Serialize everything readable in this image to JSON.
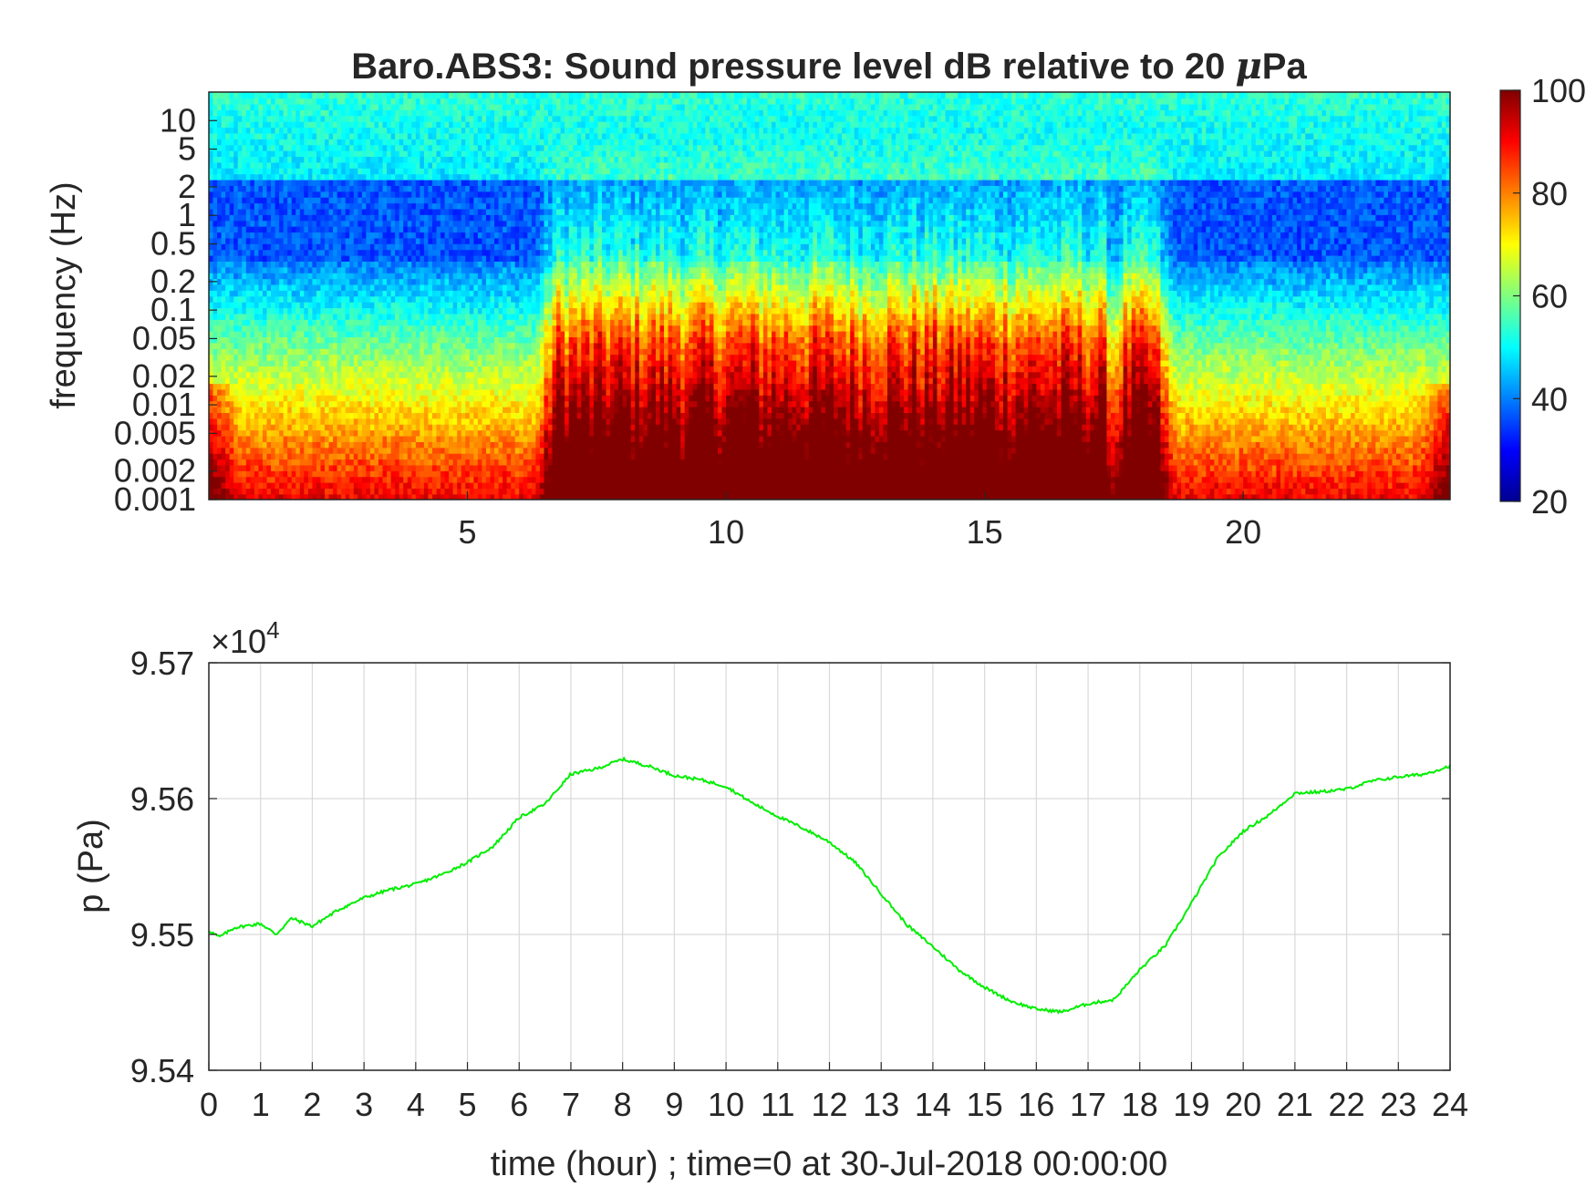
{
  "chart_data": [
    {
      "type": "heatmap",
      "title": "Baro.ABS3: Sound pressure level dB relative to 20 μPa",
      "title_main": "Baro.ABS3: Sound pressure level dB relative to 20 ",
      "title_mu": "μ",
      "title_tail": "Pa",
      "ylabel": "frequency (Hz)",
      "xlim": [
        0,
        24
      ],
      "ylim": [
        0.001,
        20
      ],
      "yscale": "log",
      "x_ticks": [
        5,
        10,
        15,
        20
      ],
      "x_tick_labels": [
        "5",
        "10",
        "15",
        "20"
      ],
      "y_ticks": [
        0.001,
        0.002,
        0.005,
        0.01,
        0.02,
        0.05,
        0.1,
        0.2,
        0.5,
        1,
        2,
        5,
        10
      ],
      "y_tick_labels": [
        "0.001",
        "0.002",
        "0.005",
        "0.01",
        "0.02",
        "0.05",
        "0.1",
        "0.2",
        "0.5",
        "1",
        "2",
        "5",
        "10"
      ],
      "colormap": "jet",
      "colorbar": {
        "range": [
          20,
          100
        ],
        "ticks": [
          20,
          40,
          60,
          80,
          100
        ],
        "tick_labels": [
          "20",
          "40",
          "60",
          "80",
          "100"
        ]
      },
      "activity_periods_hours": [
        [
          6.8,
          9.2
        ],
        [
          9.5,
          17.2
        ],
        [
          17.8,
          18.2
        ]
      ],
      "approx_levels_db": {
        "high_freq_band_10Hz": 50,
        "band_1Hz": 35,
        "low_freq_0.001Hz": 88
      }
    },
    {
      "type": "line",
      "xlabel": "time (hour) ; time=0 at 30-Jul-2018 00:00:00",
      "ylabel": "p (Pa)",
      "exponent_base": "×10",
      "exponent_power": "4",
      "xlim": [
        0,
        24
      ],
      "ylim": [
        95400,
        95700
      ],
      "grid": true,
      "x_ticks": [
        0,
        1,
        2,
        3,
        4,
        5,
        6,
        7,
        8,
        9,
        10,
        11,
        12,
        13,
        14,
        15,
        16,
        17,
        18,
        19,
        20,
        21,
        22,
        23,
        24
      ],
      "x_tick_labels": [
        "0",
        "1",
        "2",
        "3",
        "4",
        "5",
        "6",
        "7",
        "8",
        "9",
        "10",
        "11",
        "12",
        "13",
        "14",
        "15",
        "16",
        "17",
        "18",
        "19",
        "20",
        "21",
        "22",
        "23",
        "24"
      ],
      "y_ticks": [
        95400,
        95500,
        95600,
        95700
      ],
      "y_tick_labels": [
        "9.54",
        "9.55",
        "9.56",
        "9.57"
      ],
      "series": [
        {
          "color": "#00ee00",
          "x": [
            0,
            0.2,
            0.5,
            1,
            1.3,
            1.6,
            2,
            2.5,
            3,
            3.5,
            4,
            4.5,
            5,
            5.5,
            6,
            6.5,
            7,
            7.5,
            8,
            8.5,
            9,
            9.5,
            10,
            10.5,
            11,
            11.5,
            12,
            12.5,
            13,
            13.5,
            14,
            14.5,
            15,
            15.5,
            16,
            16.5,
            17,
            17.5,
            18,
            18.5,
            19,
            19.5,
            20,
            20.5,
            21,
            21.5,
            22,
            22.5,
            23,
            23.5,
            24
          ],
          "y": [
            95503,
            95498,
            95505,
            95508,
            95500,
            95512,
            95506,
            95518,
            95527,
            95533,
            95537,
            95544,
            95553,
            95565,
            95586,
            95596,
            95618,
            95622,
            95629,
            95624,
            95617,
            95614,
            95609,
            95597,
            95587,
            95578,
            95568,
            95553,
            95530,
            95507,
            95491,
            95474,
            95461,
            95451,
            95445,
            95443,
            95449,
            95452,
            95474,
            95492,
            95523,
            95556,
            95576,
            95588,
            95604,
            95605,
            95607,
            95613,
            95616,
            95618,
            95624
          ]
        }
      ]
    }
  ]
}
